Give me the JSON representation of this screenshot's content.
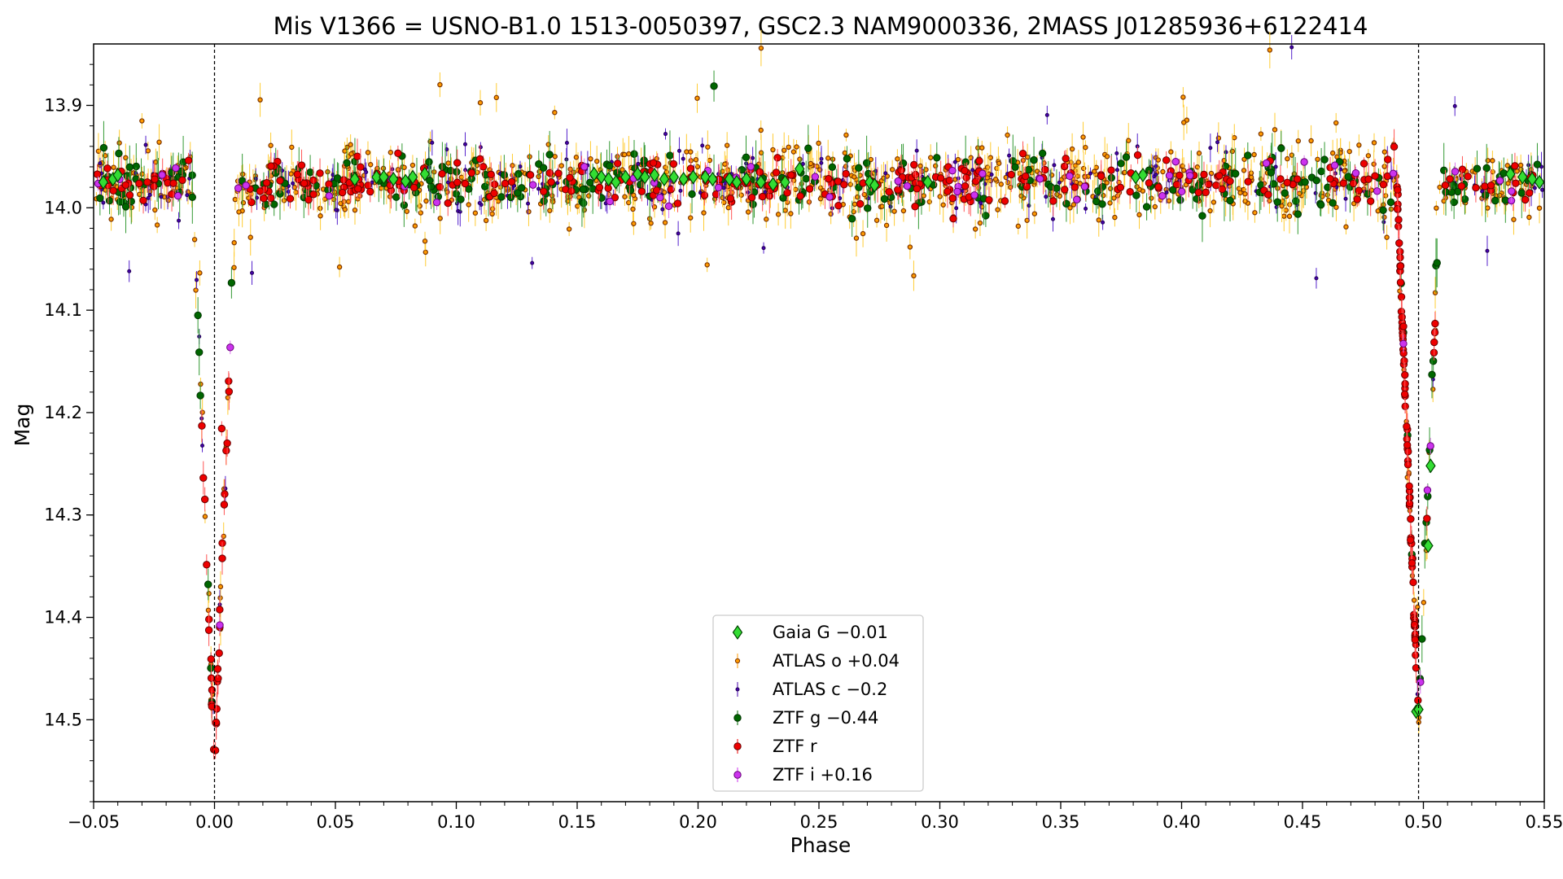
{
  "chart_data": {
    "type": "scatter",
    "title": "Mis V1366 = USNO-B1.0 1513-0050397, GSC2.3 NAM9000336, 2MASS J01285936+6122414",
    "xlabel": "Phase",
    "ylabel": "Mag",
    "xlim": [
      -0.05,
      0.55
    ],
    "ylim": [
      14.58,
      13.84
    ],
    "y_inverted": true,
    "grid": false,
    "legend_position": "bottom-center",
    "x_ticks": [
      -0.05,
      0.0,
      0.05,
      0.1,
      0.15,
      0.2,
      0.25,
      0.3,
      0.35,
      0.4,
      0.45,
      0.5,
      0.55
    ],
    "x_tick_labels": [
      "−0.05",
      "0.00",
      "0.05",
      "0.10",
      "0.15",
      "0.20",
      "0.25",
      "0.30",
      "0.35",
      "0.40",
      "0.45",
      "0.50",
      "0.55"
    ],
    "y_ticks": [
      13.9,
      14.0,
      14.1,
      14.2,
      14.3,
      14.4,
      14.5
    ],
    "y_tick_labels": [
      "13.9",
      "14.0",
      "14.1",
      "14.2",
      "14.3",
      "14.4",
      "14.5"
    ],
    "reference_lines_x": [
      0.0,
      0.498
    ],
    "eclipse_model": {
      "baseline": 13.975,
      "primary": {
        "center": 0.0,
        "depth": 0.57,
        "half_width": 0.009
      },
      "secondary": {
        "center": 0.498,
        "depth": 0.53,
        "half_width": 0.009
      }
    },
    "series": [
      {
        "name": "Gaia G −0.01",
        "marker": "diamond",
        "color": "#33dd33",
        "edge": "#004400",
        "x": [
          -0.046,
          -0.042,
          -0.04,
          0.058,
          0.067,
          0.07,
          0.074,
          0.079,
          0.082,
          0.087,
          0.157,
          0.16,
          0.163,
          0.166,
          0.17,
          0.175,
          0.178,
          0.182,
          0.186,
          0.19,
          0.194,
          0.198,
          0.203,
          0.206,
          0.213,
          0.216,
          0.22,
          0.226,
          0.231,
          0.236,
          0.242,
          0.271,
          0.273,
          0.295,
          0.381,
          0.384,
          0.497,
          0.498,
          0.502,
          0.503,
          0.536,
          0.541,
          0.545,
          0.548
        ],
        "y": [
          13.975,
          13.972,
          13.968,
          13.972,
          13.97,
          13.97,
          13.972,
          13.974,
          13.97,
          13.967,
          13.967,
          13.97,
          13.972,
          13.975,
          13.97,
          13.967,
          13.97,
          13.968,
          13.972,
          13.97,
          13.972,
          13.97,
          13.97,
          13.972,
          13.972,
          13.975,
          13.972,
          13.975,
          13.977,
          13.975,
          13.962,
          13.975,
          13.978,
          13.975,
          13.97,
          13.968,
          14.492,
          14.49,
          14.33,
          14.252,
          13.967,
          13.97,
          13.972,
          13.975
        ]
      },
      {
        "name": "ATLAS o +0.04",
        "marker": "small-circle",
        "color": "#ff9900",
        "edge": "#7a3300",
        "count": 900
      },
      {
        "name": "ATLAS c −0.2",
        "marker": "tiny-circle",
        "color": "#4400aa",
        "edge": "#220055",
        "count": 220
      },
      {
        "name": "ZTF g −0.44",
        "marker": "circle",
        "color": "#006600",
        "edge": "#003300",
        "count": 300
      },
      {
        "name": "ZTF r",
        "marker": "circle",
        "color": "#ee0000",
        "edge": "#660000",
        "count": 420
      },
      {
        "name": "ZTF i +0.16",
        "marker": "circle",
        "color": "#cc33ee",
        "edge": "#660077",
        "count": 60
      }
    ]
  }
}
